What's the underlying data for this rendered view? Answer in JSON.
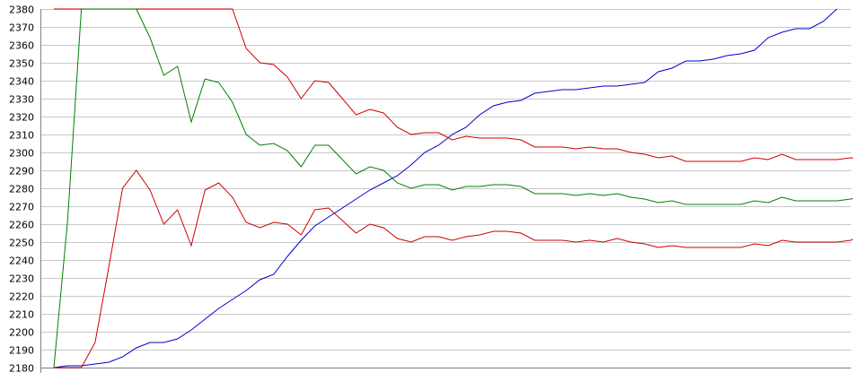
{
  "chart_data": {
    "type": "line",
    "title": "",
    "xlabel": "",
    "ylabel": "",
    "ylim": [
      2180,
      2380
    ],
    "yticks": [
      2180,
      2190,
      2200,
      2210,
      2220,
      2230,
      2240,
      2250,
      2260,
      2270,
      2280,
      2290,
      2300,
      2310,
      2320,
      2330,
      2340,
      2350,
      2360,
      2370,
      2380
    ],
    "xlim": [
      0,
      58
    ],
    "grid": true,
    "legend": "none",
    "series": [
      {
        "color": "#0000cc",
        "values": [
          2180,
          2181,
          2181,
          2182,
          2183,
          2186,
          2191,
          2194,
          2194,
          2196,
          2201,
          2207,
          2213,
          2218,
          2223,
          2229,
          2232,
          2242,
          2251,
          2259,
          2264,
          2269,
          2274,
          2279,
          2283,
          2287,
          2293,
          2300,
          2304,
          2310,
          2314,
          2321,
          2326,
          2328,
          2329,
          2333,
          2334,
          2335,
          2335,
          2336,
          2337,
          2337,
          2338,
          2339,
          2345,
          2347,
          2351,
          2351,
          2352,
          2354,
          2355,
          2357,
          2364,
          2367,
          2369,
          2369,
          2373,
          2380
        ]
      },
      {
        "color": "#cc0000",
        "values": [
          2380,
          2380,
          2380,
          2380,
          2380,
          2380,
          2380,
          2380,
          2380,
          2380,
          2380,
          2380,
          2380,
          2380,
          2358,
          2350,
          2349,
          2342,
          2330,
          2340,
          2339,
          2330,
          2321,
          2324,
          2322,
          2314,
          2310,
          2311,
          2311,
          2307,
          2309,
          2308,
          2308,
          2308,
          2307,
          2303,
          2303,
          2303,
          2302,
          2303,
          2302,
          2302,
          2300,
          2299,
          2297,
          2298,
          2295,
          2295,
          2295,
          2295,
          2295,
          2297,
          2296,
          2299,
          2296,
          2296,
          2296,
          2296,
          2297,
          2296
        ]
      },
      {
        "color": "#008000",
        "values": [
          2180,
          2262,
          2380,
          2380,
          2380,
          2380,
          2380,
          2364,
          2343,
          2348,
          2317,
          2341,
          2339,
          2328,
          2310,
          2304,
          2305,
          2301,
          2292,
          2304,
          2304,
          2296,
          2288,
          2292,
          2290,
          2283,
          2280,
          2282,
          2282,
          2279,
          2281,
          2281,
          2282,
          2282,
          2281,
          2277,
          2277,
          2277,
          2276,
          2277,
          2276,
          2277,
          2275,
          2274,
          2272,
          2273,
          2271,
          2271,
          2271,
          2271,
          2271,
          2273,
          2272,
          2275,
          2273,
          2273,
          2273,
          2273,
          2274,
          2275
        ]
      },
      {
        "color": "#cc0000",
        "values": [
          2180,
          2180,
          2180,
          2194,
          2236,
          2280,
          2290,
          2279,
          2260,
          2268,
          2248,
          2279,
          2283,
          2275,
          2261,
          2258,
          2261,
          2260,
          2254,
          2268,
          2269,
          2262,
          2255,
          2260,
          2258,
          2252,
          2250,
          2253,
          2253,
          2251,
          2253,
          2254,
          2256,
          2256,
          2255,
          2251,
          2251,
          2251,
          2250,
          2251,
          2250,
          2252,
          2250,
          2249,
          2247,
          2248,
          2247,
          2247,
          2247,
          2247,
          2247,
          2249,
          2248,
          2251,
          2250,
          2250,
          2250,
          2250,
          2251,
          2254
        ]
      }
    ]
  }
}
